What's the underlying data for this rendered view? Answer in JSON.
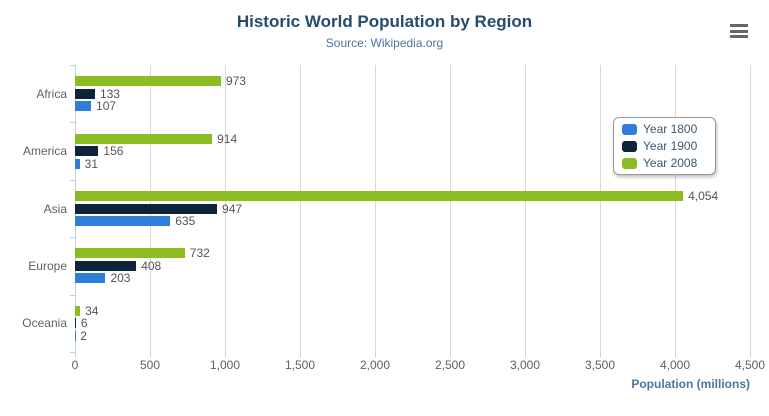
{
  "header": {
    "title": "Historic World Population by Region",
    "subtitle": "Source: Wikipedia.org"
  },
  "icons": {
    "context_menu": "hamburger-menu"
  },
  "legend": {
    "position": "right",
    "items": [
      {
        "label": "Year 1800",
        "color": "#2f7ed8"
      },
      {
        "label": "Year 1900",
        "color": "#0d233a"
      },
      {
        "label": "Year 2008",
        "color": "#8bbc21"
      }
    ]
  },
  "x_axis": {
    "title": "Population (millions)",
    "min": 0,
    "max": 4500,
    "tick_interval": 500,
    "tick_labels": [
      "0",
      "500",
      "1,000",
      "1,500",
      "2,000",
      "2,500",
      "3,000",
      "3,500",
      "4,000",
      "4,500"
    ]
  },
  "y_axis": {
    "categories": [
      "Africa",
      "America",
      "Asia",
      "Europe",
      "Oceania"
    ]
  },
  "chart_data": {
    "type": "bar",
    "orientation": "horizontal",
    "title": "Historic World Population by Region",
    "subtitle": "Source: Wikipedia.org",
    "categories": [
      "Africa",
      "America",
      "Asia",
      "Europe",
      "Oceania"
    ],
    "series": [
      {
        "name": "Year 1800",
        "color": "#2f7ed8",
        "values": [
          107,
          31,
          635,
          203,
          2
        ]
      },
      {
        "name": "Year 1900",
        "color": "#0d233a",
        "values": [
          133,
          156,
          947,
          408,
          6
        ]
      },
      {
        "name": "Year 2008",
        "color": "#8bbc21",
        "values": [
          973,
          914,
          4054,
          732,
          34
        ]
      }
    ],
    "bar_display_order_top_to_bottom": [
      "Year 2008",
      "Year 1900",
      "Year 1800"
    ],
    "xlabel": "Population (millions)",
    "ylabel": "",
    "xlim": [
      0,
      4500
    ],
    "grid": true,
    "legend_position": "right",
    "data_labels": true
  },
  "colors": {
    "title": "#274b6d",
    "subtitle": "#4d759e",
    "axis_title": "#4d759e",
    "tick_label": "#606060",
    "data_label": "#555555",
    "gridline": "#d8d8d8",
    "axis_line": "#c0d0e0",
    "background": "#ffffff"
  }
}
